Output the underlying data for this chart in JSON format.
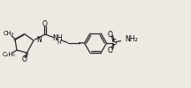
{
  "bg_color": "#ede9e3",
  "line_color": "#2a2a2a",
  "line_width": 0.9,
  "text_color": "#000000",
  "figsize": [
    2.16,
    1.0
  ],
  "dpi": 100,
  "xlim": [
    0,
    216
  ],
  "ylim": [
    0,
    100
  ]
}
